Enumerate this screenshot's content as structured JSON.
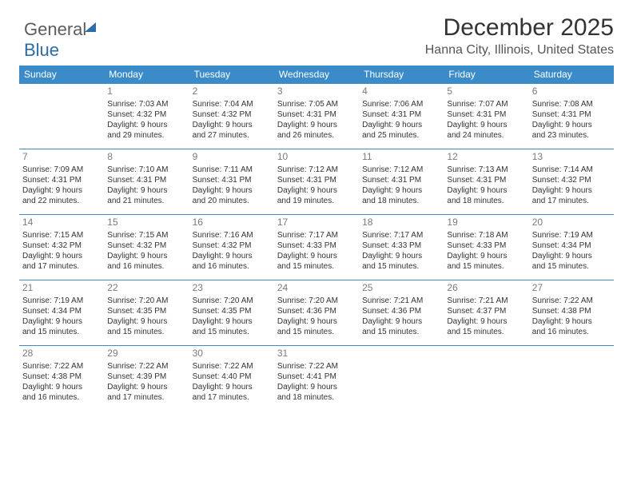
{
  "logo": {
    "part1": "General",
    "part2": "Blue"
  },
  "title": "December 2025",
  "location": "Hanna City, Illinois, United States",
  "colors": {
    "header_bg": "#3b8bc9",
    "header_text": "#ffffff",
    "border": "#3b8bc9",
    "daynum": "#7a7a7a",
    "body_text": "#333333",
    "logo_blue": "#2c6ca8",
    "logo_gray": "#5c5c5c",
    "background": "#ffffff"
  },
  "day_headers": [
    "Sunday",
    "Monday",
    "Tuesday",
    "Wednesday",
    "Thursday",
    "Friday",
    "Saturday"
  ],
  "weeks": [
    [
      {
        "n": "",
        "l": [
          "",
          "",
          "",
          ""
        ]
      },
      {
        "n": "1",
        "l": [
          "Sunrise: 7:03 AM",
          "Sunset: 4:32 PM",
          "Daylight: 9 hours",
          "and 29 minutes."
        ]
      },
      {
        "n": "2",
        "l": [
          "Sunrise: 7:04 AM",
          "Sunset: 4:32 PM",
          "Daylight: 9 hours",
          "and 27 minutes."
        ]
      },
      {
        "n": "3",
        "l": [
          "Sunrise: 7:05 AM",
          "Sunset: 4:31 PM",
          "Daylight: 9 hours",
          "and 26 minutes."
        ]
      },
      {
        "n": "4",
        "l": [
          "Sunrise: 7:06 AM",
          "Sunset: 4:31 PM",
          "Daylight: 9 hours",
          "and 25 minutes."
        ]
      },
      {
        "n": "5",
        "l": [
          "Sunrise: 7:07 AM",
          "Sunset: 4:31 PM",
          "Daylight: 9 hours",
          "and 24 minutes."
        ]
      },
      {
        "n": "6",
        "l": [
          "Sunrise: 7:08 AM",
          "Sunset: 4:31 PM",
          "Daylight: 9 hours",
          "and 23 minutes."
        ]
      }
    ],
    [
      {
        "n": "7",
        "l": [
          "Sunrise: 7:09 AM",
          "Sunset: 4:31 PM",
          "Daylight: 9 hours",
          "and 22 minutes."
        ]
      },
      {
        "n": "8",
        "l": [
          "Sunrise: 7:10 AM",
          "Sunset: 4:31 PM",
          "Daylight: 9 hours",
          "and 21 minutes."
        ]
      },
      {
        "n": "9",
        "l": [
          "Sunrise: 7:11 AM",
          "Sunset: 4:31 PM",
          "Daylight: 9 hours",
          "and 20 minutes."
        ]
      },
      {
        "n": "10",
        "l": [
          "Sunrise: 7:12 AM",
          "Sunset: 4:31 PM",
          "Daylight: 9 hours",
          "and 19 minutes."
        ]
      },
      {
        "n": "11",
        "l": [
          "Sunrise: 7:12 AM",
          "Sunset: 4:31 PM",
          "Daylight: 9 hours",
          "and 18 minutes."
        ]
      },
      {
        "n": "12",
        "l": [
          "Sunrise: 7:13 AM",
          "Sunset: 4:31 PM",
          "Daylight: 9 hours",
          "and 18 minutes."
        ]
      },
      {
        "n": "13",
        "l": [
          "Sunrise: 7:14 AM",
          "Sunset: 4:32 PM",
          "Daylight: 9 hours",
          "and 17 minutes."
        ]
      }
    ],
    [
      {
        "n": "14",
        "l": [
          "Sunrise: 7:15 AM",
          "Sunset: 4:32 PM",
          "Daylight: 9 hours",
          "and 17 minutes."
        ]
      },
      {
        "n": "15",
        "l": [
          "Sunrise: 7:15 AM",
          "Sunset: 4:32 PM",
          "Daylight: 9 hours",
          "and 16 minutes."
        ]
      },
      {
        "n": "16",
        "l": [
          "Sunrise: 7:16 AM",
          "Sunset: 4:32 PM",
          "Daylight: 9 hours",
          "and 16 minutes."
        ]
      },
      {
        "n": "17",
        "l": [
          "Sunrise: 7:17 AM",
          "Sunset: 4:33 PM",
          "Daylight: 9 hours",
          "and 15 minutes."
        ]
      },
      {
        "n": "18",
        "l": [
          "Sunrise: 7:17 AM",
          "Sunset: 4:33 PM",
          "Daylight: 9 hours",
          "and 15 minutes."
        ]
      },
      {
        "n": "19",
        "l": [
          "Sunrise: 7:18 AM",
          "Sunset: 4:33 PM",
          "Daylight: 9 hours",
          "and 15 minutes."
        ]
      },
      {
        "n": "20",
        "l": [
          "Sunrise: 7:19 AM",
          "Sunset: 4:34 PM",
          "Daylight: 9 hours",
          "and 15 minutes."
        ]
      }
    ],
    [
      {
        "n": "21",
        "l": [
          "Sunrise: 7:19 AM",
          "Sunset: 4:34 PM",
          "Daylight: 9 hours",
          "and 15 minutes."
        ]
      },
      {
        "n": "22",
        "l": [
          "Sunrise: 7:20 AM",
          "Sunset: 4:35 PM",
          "Daylight: 9 hours",
          "and 15 minutes."
        ]
      },
      {
        "n": "23",
        "l": [
          "Sunrise: 7:20 AM",
          "Sunset: 4:35 PM",
          "Daylight: 9 hours",
          "and 15 minutes."
        ]
      },
      {
        "n": "24",
        "l": [
          "Sunrise: 7:20 AM",
          "Sunset: 4:36 PM",
          "Daylight: 9 hours",
          "and 15 minutes."
        ]
      },
      {
        "n": "25",
        "l": [
          "Sunrise: 7:21 AM",
          "Sunset: 4:36 PM",
          "Daylight: 9 hours",
          "and 15 minutes."
        ]
      },
      {
        "n": "26",
        "l": [
          "Sunrise: 7:21 AM",
          "Sunset: 4:37 PM",
          "Daylight: 9 hours",
          "and 15 minutes."
        ]
      },
      {
        "n": "27",
        "l": [
          "Sunrise: 7:22 AM",
          "Sunset: 4:38 PM",
          "Daylight: 9 hours",
          "and 16 minutes."
        ]
      }
    ],
    [
      {
        "n": "28",
        "l": [
          "Sunrise: 7:22 AM",
          "Sunset: 4:38 PM",
          "Daylight: 9 hours",
          "and 16 minutes."
        ]
      },
      {
        "n": "29",
        "l": [
          "Sunrise: 7:22 AM",
          "Sunset: 4:39 PM",
          "Daylight: 9 hours",
          "and 17 minutes."
        ]
      },
      {
        "n": "30",
        "l": [
          "Sunrise: 7:22 AM",
          "Sunset: 4:40 PM",
          "Daylight: 9 hours",
          "and 17 minutes."
        ]
      },
      {
        "n": "31",
        "l": [
          "Sunrise: 7:22 AM",
          "Sunset: 4:41 PM",
          "Daylight: 9 hours",
          "and 18 minutes."
        ]
      },
      {
        "n": "",
        "l": [
          "",
          "",
          "",
          ""
        ]
      },
      {
        "n": "",
        "l": [
          "",
          "",
          "",
          ""
        ]
      },
      {
        "n": "",
        "l": [
          "",
          "",
          "",
          ""
        ]
      }
    ]
  ]
}
